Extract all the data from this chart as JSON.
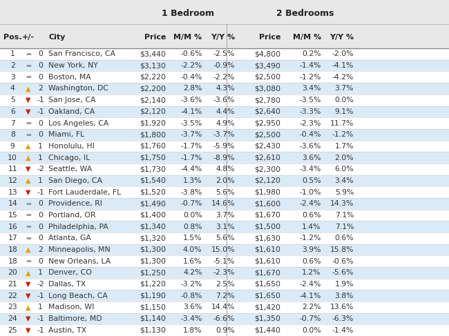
{
  "rows": [
    [
      1,
      "=",
      0,
      "San Francisco, CA",
      "$3,440",
      "-0.6%",
      "-2.5%",
      "$4,800",
      "0.2%",
      "-2.0%"
    ],
    [
      2,
      "=",
      0,
      "New York, NY",
      "$3,130",
      "-2.2%",
      "-0.9%",
      "$3,490",
      "-1.4%",
      "-4.1%"
    ],
    [
      3,
      "=",
      0,
      "Boston, MA",
      "$2,220",
      "-0.4%",
      "-2.2%",
      "$2,500",
      "-1.2%",
      "-4.2%"
    ],
    [
      4,
      "^",
      2,
      "Washington, DC",
      "$2,200",
      "2.8%",
      "4.3%",
      "$3,080",
      "3.4%",
      "3.7%"
    ],
    [
      5,
      "v",
      -1,
      "San Jose, CA",
      "$2,140",
      "-3.6%",
      "-3.6%",
      "$2,780",
      "-3.5%",
      "0.0%"
    ],
    [
      6,
      "v",
      -1,
      "Oakland, CA",
      "$2,120",
      "-4.1%",
      "4.4%",
      "$2,640",
      "-3.3%",
      "9.1%"
    ],
    [
      7,
      "=",
      0,
      "Los Angeles, CA",
      "$1,920",
      "-3.5%",
      "4.9%",
      "$2,950",
      "-2.3%",
      "11.7%"
    ],
    [
      8,
      "=",
      0,
      "Miami, FL",
      "$1,800",
      "-3.7%",
      "-3.7%",
      "$2,500",
      "-0.4%",
      "-1.2%"
    ],
    [
      9,
      "^",
      1,
      "Honolulu, HI",
      "$1,760",
      "-1.7%",
      "-5.9%",
      "$2,430",
      "-3.6%",
      "1.7%"
    ],
    [
      10,
      "^",
      1,
      "Chicago, IL",
      "$1,750",
      "-1.7%",
      "-8.9%",
      "$2,610",
      "3.6%",
      "2.0%"
    ],
    [
      11,
      "v",
      -2,
      "Seattle, WA",
      "$1,730",
      "-4.4%",
      "4.8%",
      "$2,300",
      "-3.4%",
      "6.0%"
    ],
    [
      12,
      "^",
      1,
      "San Diego, CA",
      "$1,540",
      "1.3%",
      "2.0%",
      "$2,120",
      "0.5%",
      "3.4%"
    ],
    [
      13,
      "v",
      -1,
      "Fort Lauderdale, FL",
      "$1,520",
      "-3.8%",
      "5.6%",
      "$1,980",
      "-1.0%",
      "5.9%"
    ],
    [
      14,
      "=",
      0,
      "Providence, RI",
      "$1,490",
      "-0.7%",
      "14.6%",
      "$1,600",
      "-2.4%",
      "14.3%"
    ],
    [
      15,
      "=",
      0,
      "Portland, OR",
      "$1,400",
      "0.0%",
      "3.7%",
      "$1,670",
      "0.6%",
      "7.1%"
    ],
    [
      16,
      "=",
      0,
      "Philadelphia, PA",
      "$1,340",
      "0.8%",
      "3.1%",
      "$1,500",
      "1.4%",
      "7.1%"
    ],
    [
      17,
      "=",
      0,
      "Atlanta, GA",
      "$1,320",
      "1.5%",
      "5.6%",
      "$1,630",
      "-1.2%",
      "0.6%"
    ],
    [
      18,
      "^",
      2,
      "Minneapolis, MN",
      "$1,300",
      "4.0%",
      "15.0%",
      "$1,610",
      "3.9%",
      "15.8%"
    ],
    [
      18,
      "=",
      0,
      "New Orleans, LA",
      "$1,300",
      "1.6%",
      "-5.1%",
      "$1,610",
      "0.6%",
      "-0.6%"
    ],
    [
      20,
      "^",
      1,
      "Denver, CO",
      "$1,250",
      "4.2%",
      "-2.3%",
      "$1,670",
      "1.2%",
      "-5.6%"
    ],
    [
      21,
      "v",
      -2,
      "Dallas, TX",
      "$1,220",
      "-3.2%",
      "2.5%",
      "$1,650",
      "-2.4%",
      "1.9%"
    ],
    [
      22,
      "v",
      -1,
      "Long Beach, CA",
      "$1,190",
      "-0.8%",
      "7.2%",
      "$1,650",
      "-4.1%",
      "3.8%"
    ],
    [
      23,
      "^",
      1,
      "Madison, WI",
      "$1,150",
      "3.6%",
      "14.4%",
      "$1,420",
      "2.2%",
      "13.6%"
    ],
    [
      24,
      "v",
      -1,
      "Baltimore, MD",
      "$1,140",
      "-3.4%",
      "-6.6%",
      "$1,350",
      "-0.7%",
      "-6.3%"
    ],
    [
      25,
      "v",
      -1,
      "Austin, TX",
      "$1,130",
      "1.8%",
      "0.9%",
      "$1,440",
      "0.0%",
      "-1.4%"
    ]
  ],
  "odd_row_bg": "#ffffff",
  "even_row_bg": "#daeaf7",
  "header_bg": "#e8e8e8",
  "text_color": "#333333",
  "up_color": "#e8a000",
  "down_color": "#cc2200",
  "neutral_color": "#999999",
  "sep_color": "#bbbbbb",
  "fig_width": 6.5,
  "fig_height": 4.87,
  "header1_label_1br": "1 Bedroom",
  "header1_label_2br": "2 Bedrooms",
  "col_headers": [
    "Pos.",
    "+/-",
    "City",
    "Price",
    "M/M %",
    "Y/Y %",
    "Price",
    "M/M %",
    "Y/Y %"
  ]
}
